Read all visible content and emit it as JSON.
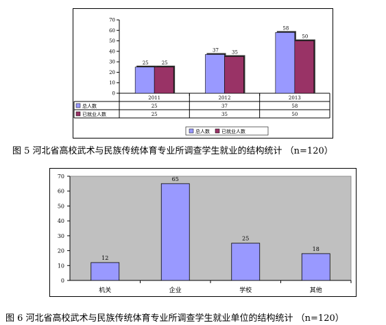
{
  "figure5": {
    "caption": "图 5  河北省高校武术与民族传统体育专业所调查学生就业的结构统计  （n=120）",
    "chart_data": {
      "type": "bar",
      "categories": [
        "2011",
        "2012",
        "2013"
      ],
      "series": [
        {
          "name": "总人数",
          "values": [
            25,
            37,
            58
          ],
          "color": "#9999ff"
        },
        {
          "name": "已就业人数",
          "values": [
            25,
            35,
            50
          ],
          "color": "#993366"
        }
      ],
      "ylim": [
        0,
        70
      ],
      "yticks": [
        "0",
        "10",
        "20",
        "30",
        "40",
        "50",
        "60",
        "70"
      ],
      "legend_position": "bottom",
      "data_table": true,
      "grid": false
    }
  },
  "figure6": {
    "caption": "图 6  河北省高校武术与民族传统体育专业所调查学生就业单位的结构统计  （n=120）",
    "chart_data": {
      "type": "bar",
      "categories": [
        "机关",
        "企业",
        "学校",
        "其他"
      ],
      "values": [
        12,
        65,
        25,
        18
      ],
      "color": "#9999ff",
      "ylim": [
        0,
        70
      ],
      "yticks": [
        "0",
        "10",
        "20",
        "30",
        "40",
        "50",
        "60",
        "70"
      ],
      "plot_background": "#c0c0c0",
      "grid": false
    }
  }
}
